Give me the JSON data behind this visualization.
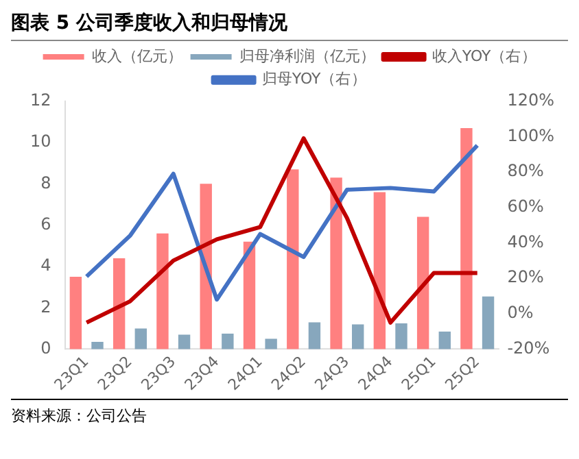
{
  "chart_data": {
    "type": "bar",
    "title": "图表 5 公司季度收入和归母情况",
    "categories": [
      "23Q1",
      "23Q2",
      "23Q3",
      "23Q4",
      "24Q1",
      "24Q2",
      "24Q3",
      "24Q4",
      "25Q1",
      "25Q2"
    ],
    "series": [
      {
        "name": "收入（亿元）",
        "color": "#ff8080",
        "values": [
          3.5,
          4.4,
          5.6,
          8.0,
          5.2,
          8.7,
          8.3,
          7.6,
          6.4,
          10.7
        ]
      },
      {
        "name": "归母净利润（亿元）",
        "color": "#87a7bd",
        "values": [
          0.35,
          1.0,
          0.7,
          0.75,
          0.5,
          1.3,
          1.2,
          1.25,
          0.85,
          2.55
        ]
      },
      {
        "name": "收入YOY（右）",
        "type": "line",
        "axis": "y2",
        "color": "#c00000",
        "values": [
          -5,
          7,
          30,
          42,
          49,
          99,
          54,
          -5,
          23,
          23
        ]
      },
      {
        "name": "归母YOY（右）",
        "type": "line",
        "axis": "y2",
        "color": "#4472c4",
        "values": [
          21,
          44,
          79,
          8,
          45,
          32,
          70,
          71,
          69,
          95
        ]
      }
    ],
    "ylim": [
      0,
      12
    ],
    "yticks": [
      0,
      2,
      4,
      6,
      8,
      10,
      12
    ],
    "y2lim": [
      -20,
      120
    ],
    "y2ticks": [
      {
        "value": -20,
        "label": "-20%"
      },
      {
        "value": 0,
        "label": "0%"
      },
      {
        "value": 20,
        "label": "20%"
      },
      {
        "value": 40,
        "label": "40%"
      },
      {
        "value": 60,
        "label": "60%"
      },
      {
        "value": 80,
        "label": "80%"
      },
      {
        "value": 100,
        "label": "100%"
      },
      {
        "value": 120,
        "label": "120%"
      }
    ],
    "grid": false,
    "legend": "top",
    "marker": "none",
    "annotations": [
      "资料来源：公司公告"
    ]
  }
}
